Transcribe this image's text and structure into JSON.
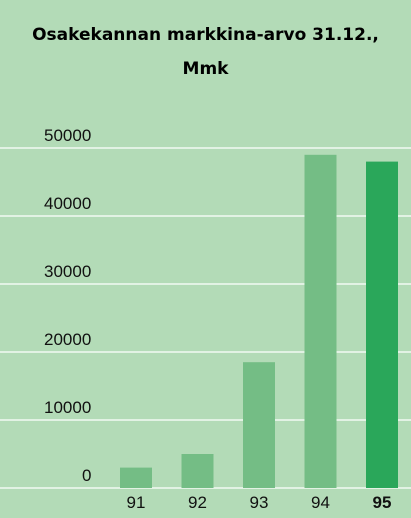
{
  "chart_data": {
    "type": "bar",
    "title": "Osakekannan markkina-arvo 31.12.,",
    "subtitle": "Mmk",
    "categories": [
      "91",
      "92",
      "93",
      "94",
      "95"
    ],
    "values": [
      3000,
      5000,
      18500,
      49000,
      48000
    ],
    "ylim": [
      0,
      50000
    ],
    "yticks": [
      0,
      10000,
      20000,
      30000,
      40000,
      50000
    ],
    "ytick_labels": [
      "0",
      "10000",
      "20000",
      "30000",
      "40000",
      "50000"
    ],
    "highlight_category": "95",
    "grid": true,
    "colors": {
      "background": "#b3dbb7",
      "bar": "#74bd85",
      "bar_highlight": "#2aa75a",
      "grid": "#ffffff"
    }
  }
}
